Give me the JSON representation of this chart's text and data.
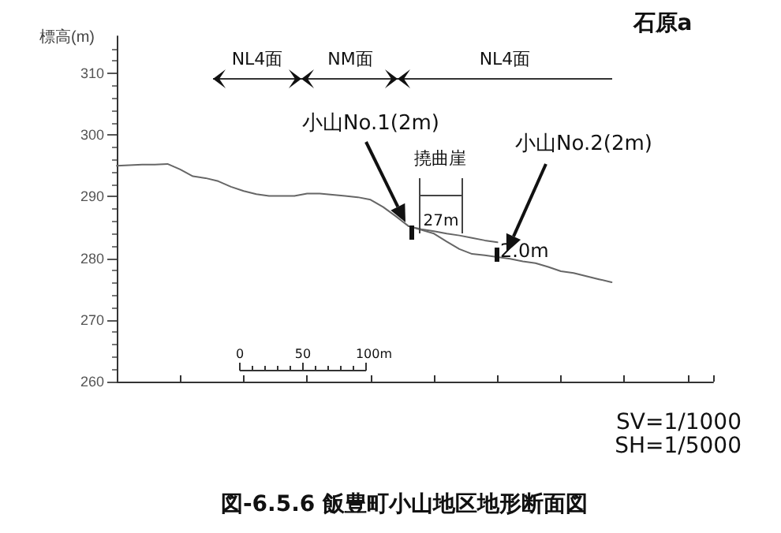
{
  "chart_data": {
    "type": "line",
    "title": "図-6.5.6 飯豊町小山地区地形断面図",
    "ylabel": "標高(m)",
    "categories": [
      null,
      null,
      null,
      null,
      null,
      null,
      null,
      null,
      null,
      null,
      null,
      null,
      null,
      null,
      null,
      null,
      null,
      null,
      null,
      null,
      null,
      null,
      null,
      null,
      null,
      null,
      null,
      null,
      null,
      null,
      null,
      null,
      null,
      null,
      null,
      null,
      null,
      null,
      null,
      null,
      null,
      null,
      null,
      null,
      null,
      null,
      null,
      null
    ],
    "series": [
      {
        "color": "#666666",
        "values": [
          295.0,
          295.1,
          295.2,
          295.2,
          295.3,
          294.4,
          293.3,
          293.0,
          292.5,
          291.6,
          290.9,
          290.4,
          290.1,
          290.1,
          290.1,
          290.5,
          290.5,
          290.3,
          290.1,
          289.9,
          289.5,
          288.3,
          286.8,
          285.2,
          284.6,
          284.0,
          282.7,
          281.5,
          280.7,
          280.5,
          280.2,
          279.9,
          279.5,
          279.2,
          278.6,
          277.9,
          277.6,
          277.1,
          276.6,
          276.1,
          null,
          null,
          null,
          null,
          null,
          null,
          null,
          null
        ]
      },
      {
        "color": "#666666",
        "values": [
          null,
          null,
          null,
          null,
          null,
          null,
          null,
          null,
          null,
          null,
          null,
          null,
          null,
          null,
          null,
          null,
          null,
          null,
          null,
          null,
          null,
          null,
          null,
          285.2,
          284.7,
          284.4,
          284.0,
          283.7,
          283.3,
          282.9,
          282.6,
          null,
          null,
          null,
          null,
          null,
          null,
          null,
          null,
          null,
          null,
          null,
          null,
          null,
          null,
          null,
          null,
          null
        ]
      }
    ],
    "ylim": [
      260,
      316
    ],
    "yticks": [
      260,
      270,
      280,
      290,
      300,
      310
    ],
    "marker": "none",
    "line_style": "solid",
    "annotations": [
      "NL4面",
      "NM面",
      "NL4面",
      "小山No.1(2m)",
      "小山No.2(2m)",
      "撓曲崖",
      "27m",
      "2.0m",
      "0",
      "50",
      "100m",
      "石原a",
      "SV=1/1000",
      "SH=1/5000"
    ]
  }
}
